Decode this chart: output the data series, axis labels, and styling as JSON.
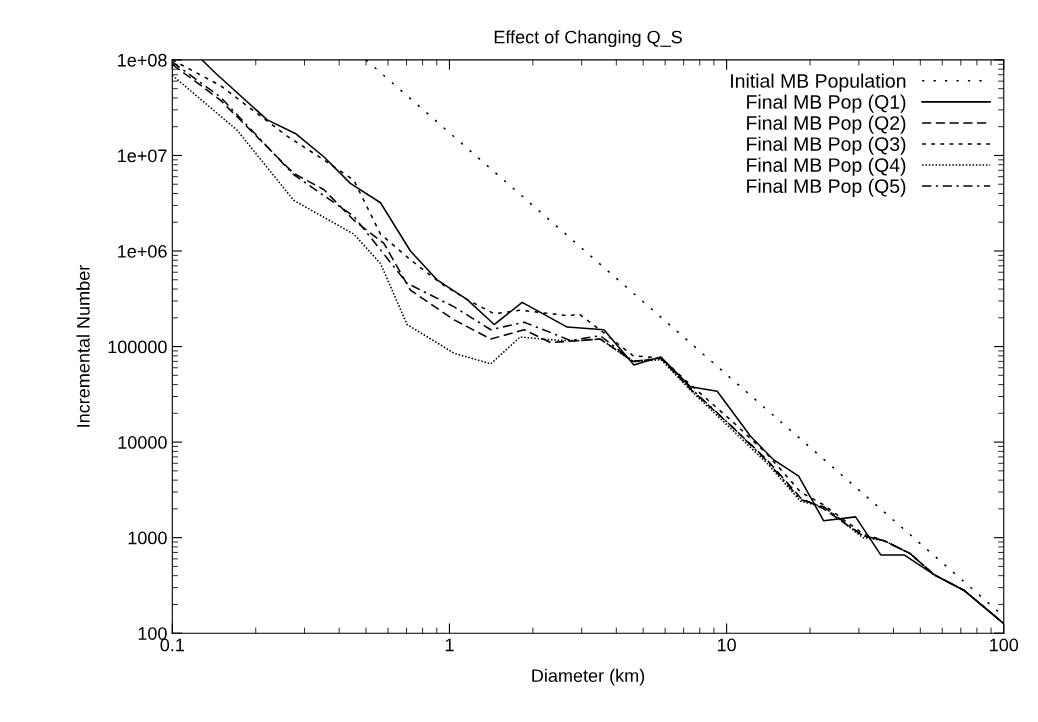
{
  "chart_data": {
    "type": "line",
    "title": "Effect of Changing Q_S",
    "xlabel": "Diameter (km)",
    "ylabel": "Incremental Number",
    "log": "xy",
    "xlim": [
      0.1,
      100
    ],
    "xticks": [
      0.1,
      1,
      10,
      100
    ],
    "ylim": [
      100,
      100000000
    ],
    "yticks": [
      {
        "value": 100,
        "label": "100"
      },
      {
        "value": 1000,
        "label": "1000"
      },
      {
        "value": 10000,
        "label": "10000"
      },
      {
        "value": 100000,
        "label": "100000"
      },
      {
        "value": 1000000,
        "label": "1e+06"
      },
      {
        "value": 10000000,
        "label": "1e+07"
      },
      {
        "value": 100000000,
        "label": "1e+08"
      }
    ],
    "grid": false,
    "legend": "top right",
    "series": [
      {
        "name": "Initial MB Population",
        "color": "#000000",
        "line_style": "sparse dotted",
        "x": [
          0.5,
          100
        ],
        "values": [
          100000000,
          150
        ]
      },
      {
        "name": "Final MB Pop (Q1)",
        "color": "#000000",
        "line_style": "solid",
        "x": [
          0.128,
          0.143,
          0.22,
          0.278,
          0.352,
          0.439,
          0.564,
          0.723,
          0.902,
          1.16,
          1.45,
          1.83,
          2.66,
          3.61,
          4.63,
          5.78,
          7.41,
          9.25,
          12.2,
          14.8,
          18.2,
          22.4,
          29.2,
          36,
          43.7,
          56,
          72,
          100
        ],
        "values": [
          100000000,
          73000000,
          23600000,
          17000000,
          9700000,
          5100000,
          3200000,
          1000000,
          500000,
          310000,
          170000,
          290000,
          160000,
          150000,
          64000,
          78000,
          38000,
          34000,
          11500,
          6500,
          4400,
          1500,
          1650,
          660,
          660,
          410,
          280,
          126
        ]
      },
      {
        "name": "Final MB Pop (Q2)",
        "color": "#000000",
        "line_style": "dashed",
        "x": [
          0.1,
          0.149,
          0.274,
          0.352,
          0.452,
          0.58,
          0.723,
          1.04,
          1.41,
          1.86,
          2.32,
          3.5,
          4.6,
          5.8,
          7.4,
          10.6,
          14,
          18.5,
          22.4,
          31,
          37,
          46,
          56,
          72,
          100
        ],
        "values": [
          90000000,
          38000000,
          6500000,
          4400000,
          2100000,
          1200000,
          390000,
          190000,
          120000,
          150000,
          110000,
          120000,
          70000,
          75000,
          36000,
          14000,
          6500,
          2600,
          2000,
          1050,
          930,
          680,
          410,
          280,
          126
        ]
      },
      {
        "name": "Final MB Pop (Q3)",
        "color": "#000000",
        "line_style": "short dashed",
        "x": [
          0.1,
          0.149,
          0.259,
          0.352,
          0.452,
          0.564,
          0.723,
          0.93,
          1.16,
          1.45,
          1.8,
          2.7,
          2.93,
          3.6,
          4.6,
          5.8,
          7.4,
          10.6,
          14,
          18.5,
          22.4,
          31,
          37,
          46,
          56,
          72,
          100
        ],
        "values": [
          100000000,
          54000000,
          16000000,
          9000000,
          5500000,
          1500000,
          810000,
          460000,
          310000,
          220000,
          240000,
          210000,
          220000,
          140000,
          80000,
          76000,
          40000,
          16000,
          7500,
          3000,
          2200,
          1100,
          930,
          680,
          410,
          280,
          126
        ]
      },
      {
        "name": "Final MB Pop (Q4)",
        "color": "#000000",
        "line_style": "dotted",
        "x": [
          0.1,
          0.171,
          0.274,
          0.452,
          0.564,
          0.703,
          1.04,
          1.41,
          1.8,
          2.38,
          2.93,
          3.5,
          4.6,
          5.8,
          7.4,
          10.6,
          14,
          18.5,
          22.4,
          31,
          37,
          46,
          56,
          72,
          100
        ],
        "values": [
          69000000,
          18500000,
          3400000,
          1500000,
          740000,
          170000,
          85000,
          66000,
          126000,
          117000,
          115000,
          120000,
          69000,
          73000,
          35000,
          13000,
          6000,
          2400,
          2100,
          1000,
          930,
          680,
          410,
          280,
          126
        ]
      },
      {
        "name": "Final MB Pop (Q5)",
        "color": "#000000",
        "line_style": "dashdot",
        "x": [
          0.1,
          0.149,
          0.274,
          0.452,
          0.703,
          1.04,
          1.41,
          1.86,
          2.73,
          3.5,
          4.6,
          5.8,
          7.4,
          10.6,
          14,
          18.5,
          22.4,
          31,
          37,
          46,
          56,
          72,
          100
        ],
        "values": [
          95000000,
          41000000,
          6300000,
          2300000,
          460000,
          260000,
          150000,
          180000,
          116000,
          130000,
          70000,
          76000,
          37000,
          14000,
          6300,
          2500,
          2100,
          1050,
          930,
          680,
          410,
          280,
          126
        ]
      }
    ]
  }
}
